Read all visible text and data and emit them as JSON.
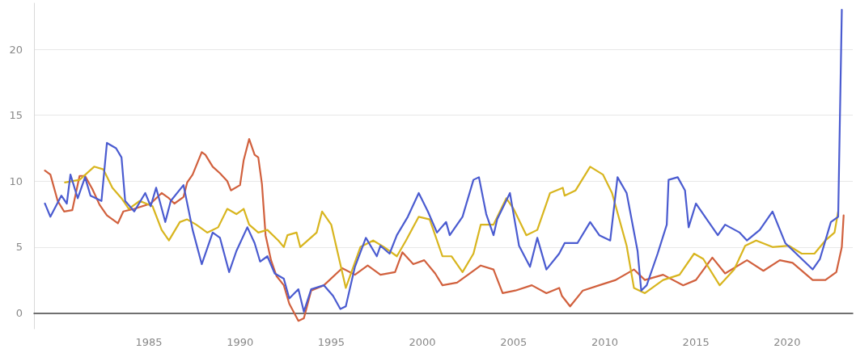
{
  "chart_data": {
    "type": "line",
    "xlim": [
      1978.7,
      2023.6
    ],
    "xticks": [
      1985,
      1990,
      1995,
      2000,
      2005,
      2010,
      2015,
      2020
    ],
    "ylim": [
      -1.2,
      23.5
    ],
    "yticks": [
      0,
      5,
      10,
      15,
      20
    ],
    "grid": "y",
    "marker": "none",
    "line_style": "solid",
    "series": [
      {
        "color": "#d1603d",
        "x": [
          1979.3,
          1979.6,
          1980.0,
          1980.35,
          1980.8,
          1981.2,
          1981.5,
          1981.9,
          1982.3,
          1982.7,
          1983.3,
          1983.6,
          1984.2,
          1985.1,
          1985.7,
          1986.1,
          1986.4,
          1986.9,
          1987.1,
          1987.4,
          1987.9,
          1988.1,
          1988.5,
          1988.9,
          1989.3,
          1989.5,
          1990.0,
          1990.2,
          1990.5,
          1990.8,
          1991.0,
          1991.2,
          1991.4,
          1991.7,
          1992.0,
          1992.4,
          1992.7,
          1993.2,
          1993.5,
          1993.9,
          1994.6,
          1995.6,
          1996.3,
          1997.0,
          1997.7,
          1998.5,
          1998.9,
          1999.5,
          2000.1,
          2000.7,
          2001.1,
          2001.9,
          2002.5,
          2003.2,
          2003.9,
          2004.4,
          2005.1,
          2006.0,
          2006.8,
          2007.5,
          2007.65,
          2008.1,
          2008.8,
          2009.7,
          2010.6,
          2011.6,
          2012.2,
          2013.2,
          2014.3,
          2015.0,
          2015.9,
          2016.6,
          2017.8,
          2018.7,
          2019.6,
          2020.3,
          2021.4,
          2022.1,
          2022.7,
          2023.0,
          2023.1
        ],
        "values": [
          10.8,
          10.5,
          8.5,
          7.7,
          7.8,
          10.4,
          10.4,
          9.4,
          8.2,
          7.4,
          6.8,
          7.7,
          7.9,
          8.3,
          9.1,
          8.7,
          8.3,
          8.8,
          9.9,
          10.5,
          12.2,
          12.0,
          11.1,
          10.6,
          10.0,
          9.3,
          9.7,
          11.6,
          13.2,
          12.0,
          11.8,
          9.8,
          5.9,
          4.0,
          2.8,
          2.1,
          0.7,
          -0.6,
          -0.4,
          1.7,
          2.1,
          3.4,
          2.9,
          3.6,
          2.9,
          3.1,
          4.6,
          3.7,
          4.0,
          3.0,
          2.1,
          2.3,
          2.9,
          3.6,
          3.3,
          1.5,
          1.7,
          2.1,
          1.5,
          1.9,
          1.3,
          0.5,
          1.7,
          2.1,
          2.5,
          3.3,
          2.5,
          2.9,
          2.1,
          2.5,
          4.2,
          3.0,
          4.0,
          3.2,
          4.0,
          3.8,
          2.5,
          2.5,
          3.1,
          5.0,
          7.4
        ]
      },
      {
        "color": "#d8b51e",
        "x": [
          1980.4,
          1981.2,
          1982.0,
          1982.5,
          1983.0,
          1983.5,
          1983.9,
          1984.5,
          1985.2,
          1985.7,
          1986.1,
          1986.7,
          1987.1,
          1987.6,
          1988.2,
          1988.8,
          1989.3,
          1989.8,
          1990.2,
          1990.5,
          1991.0,
          1991.5,
          1992.1,
          1992.4,
          1992.6,
          1993.1,
          1993.3,
          1994.2,
          1994.5,
          1995.0,
          1995.4,
          1995.8,
          1996.6,
          1997.3,
          1997.9,
          1998.6,
          1999.1,
          1999.8,
          2000.4,
          2000.8,
          2001.1,
          2001.6,
          2002.2,
          2002.8,
          2003.2,
          2003.9,
          2004.6,
          2005.0,
          2005.7,
          2006.3,
          2007.0,
          2007.7,
          2007.8,
          2008.4,
          2009.2,
          2009.9,
          2010.4,
          2011.2,
          2011.6,
          2012.2,
          2013.2,
          2014.1,
          2014.9,
          2015.4,
          2016.3,
          2017.1,
          2017.7,
          2018.3,
          2019.2,
          2020.1,
          2020.8,
          2021.5,
          2022.1,
          2022.6,
          2022.8
        ],
        "values": [
          9.9,
          10.1,
          11.1,
          10.9,
          9.5,
          8.7,
          7.9,
          8.5,
          8.1,
          6.3,
          5.5,
          6.9,
          7.1,
          6.7,
          6.1,
          6.5,
          7.9,
          7.5,
          7.9,
          6.7,
          6.1,
          6.3,
          5.5,
          5.0,
          5.9,
          6.1,
          5.0,
          6.1,
          7.7,
          6.7,
          4.3,
          1.9,
          5.0,
          5.5,
          5.0,
          4.3,
          5.5,
          7.3,
          7.1,
          5.5,
          4.3,
          4.3,
          3.1,
          4.5,
          6.7,
          6.7,
          8.7,
          7.9,
          5.9,
          6.3,
          9.1,
          9.5,
          8.9,
          9.3,
          11.1,
          10.5,
          9.1,
          5.1,
          1.9,
          1.5,
          2.5,
          2.9,
          4.5,
          4.1,
          2.1,
          3.3,
          5.1,
          5.5,
          5.0,
          5.1,
          4.5,
          4.5,
          5.5,
          6.1,
          7.7
        ]
      },
      {
        "color": "#4a5bd0",
        "x": [
          1979.3,
          1979.6,
          1980.2,
          1980.5,
          1980.7,
          1981.1,
          1981.5,
          1981.8,
          1982.4,
          1982.7,
          1983.2,
          1983.5,
          1983.7,
          1984.2,
          1984.8,
          1985.1,
          1985.4,
          1985.9,
          1986.2,
          1986.9,
          1987.4,
          1987.9,
          1988.5,
          1988.9,
          1989.4,
          1989.8,
          1990.4,
          1990.8,
          1991.1,
          1991.5,
          1991.9,
          1992.4,
          1992.7,
          1993.2,
          1993.5,
          1993.9,
          1994.6,
          1995.1,
          1995.5,
          1995.8,
          1996.3,
          1996.9,
          1997.5,
          1997.7,
          1998.2,
          1998.6,
          1999.2,
          1999.8,
          2000.3,
          2000.8,
          2001.3,
          2001.5,
          2002.2,
          2002.8,
          2003.1,
          2003.5,
          2003.9,
          2004.1,
          2004.8,
          2005.3,
          2005.9,
          2006.3,
          2006.8,
          2007.5,
          2007.8,
          2008.5,
          2009.2,
          2009.7,
          2010.3,
          2010.7,
          2011.2,
          2011.8,
          2012.0,
          2012.3,
          2012.9,
          2013.4,
          2013.5,
          2014.0,
          2014.4,
          2014.6,
          2015.0,
          2015.6,
          2016.2,
          2016.6,
          2017.4,
          2017.8,
          2018.5,
          2019.2,
          2019.9,
          2020.8,
          2021.4,
          2021.8,
          2022.4,
          2022.8,
          2023.0
        ],
        "values": [
          8.3,
          7.3,
          8.9,
          8.3,
          10.5,
          8.7,
          10.3,
          8.9,
          8.5,
          12.9,
          12.5,
          11.8,
          8.5,
          7.7,
          9.1,
          8.1,
          9.5,
          6.9,
          8.5,
          9.7,
          6.3,
          3.7,
          6.1,
          5.7,
          3.1,
          4.7,
          6.5,
          5.3,
          3.9,
          4.3,
          3.0,
          2.6,
          1.1,
          1.8,
          0.1,
          1.8,
          2.1,
          1.3,
          0.3,
          0.5,
          3.5,
          5.7,
          4.3,
          5.1,
          4.5,
          5.9,
          7.3,
          9.1,
          7.7,
          6.1,
          6.9,
          5.9,
          7.3,
          10.1,
          10.3,
          7.5,
          5.9,
          7.1,
          9.1,
          5.1,
          3.5,
          5.7,
          3.3,
          4.5,
          5.3,
          5.3,
          6.9,
          5.9,
          5.5,
          10.3,
          9.1,
          4.7,
          1.7,
          2.1,
          4.5,
          6.7,
          10.1,
          10.3,
          9.3,
          6.5,
          8.3,
          7.1,
          5.9,
          6.7,
          6.1,
          5.5,
          6.3,
          7.7,
          5.3,
          4.1,
          3.3,
          4.1,
          6.9,
          7.3,
          23.0
        ]
      }
    ]
  }
}
